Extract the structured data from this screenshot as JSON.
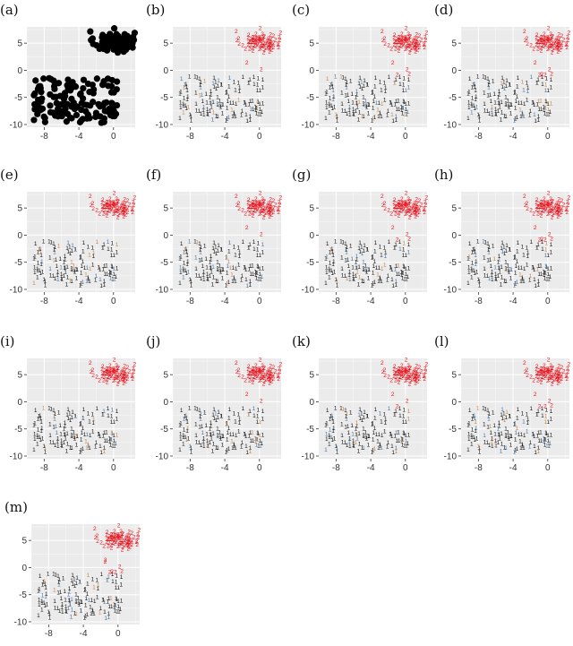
{
  "chart_data": [
    {
      "id": "a",
      "label": "(a)",
      "type": "scatter",
      "style": "dots",
      "xlim": [
        -10,
        2.5
      ],
      "ylim": [
        -10.5,
        8
      ],
      "xticks": [
        "-8",
        "-4",
        "0"
      ],
      "yticks": [
        "5",
        "0",
        "-5",
        "-10"
      ],
      "series": [
        {
          "name": "",
          "points": "black dots: dense cluster around x≈0, y≈5; sparse cluster spanning x −9 to 0, y −10 to −2"
        }
      ]
    },
    {
      "id": "b",
      "label": "(b)",
      "type": "scatter",
      "style": "glyphs",
      "xlim": [
        -10,
        2.5
      ],
      "ylim": [
        -10.5,
        8
      ],
      "xticks": [
        "-8",
        "-4",
        "0"
      ],
      "yticks": [
        "5",
        "0",
        "-5",
        "-10"
      ],
      "series": [
        {
          "name": "",
          "glyph": "2",
          "color": "#e8141e"
        },
        {
          "name": "",
          "glyph": "1",
          "color": "#1a1a1a"
        }
      ]
    },
    {
      "id": "c",
      "label": "(c)",
      "type": "scatter",
      "style": "glyphs",
      "xlim": [
        -10,
        2.5
      ],
      "ylim": [
        -10.5,
        8
      ],
      "xticks": [
        "-8",
        "-4",
        "0"
      ],
      "yticks": [
        "5",
        "0",
        "-5",
        "-10"
      ],
      "series": [
        {
          "name": "",
          "glyph": "2",
          "color": "#e8141e"
        },
        {
          "name": "",
          "glyph": "1",
          "color": "#1a1a1a"
        }
      ]
    },
    {
      "id": "d",
      "label": "(d)",
      "type": "scatter",
      "style": "glyphs",
      "xlim": [
        -10,
        2.5
      ],
      "ylim": [
        -10.5,
        8
      ],
      "xticks": [
        "-8",
        "-4",
        "0"
      ],
      "yticks": [
        "5",
        "0",
        "-5",
        "-10"
      ],
      "series": [
        {
          "name": "",
          "glyph": "2",
          "color": "#e8141e"
        },
        {
          "name": "",
          "glyph": "1",
          "color": "#1a1a1a"
        }
      ]
    },
    {
      "id": "e",
      "label": "(e)",
      "type": "scatter",
      "style": "glyphs",
      "xlim": [
        -10,
        2.5
      ],
      "ylim": [
        -10.5,
        8
      ],
      "xticks": [
        "-8",
        "-4",
        "0"
      ],
      "yticks": [
        "5",
        "0",
        "-5",
        "-10"
      ],
      "series": [
        {
          "name": "",
          "glyph": "2",
          "color": "#e8141e"
        },
        {
          "name": "",
          "glyph": "1",
          "color": "#1a1a1a"
        }
      ]
    },
    {
      "id": "f",
      "label": "(f)",
      "type": "scatter",
      "style": "glyphs",
      "xlim": [
        -10,
        2.5
      ],
      "ylim": [
        -10.5,
        8
      ],
      "xticks": [
        "-8",
        "-4",
        "0"
      ],
      "yticks": [
        "5",
        "0",
        "-5",
        "-10"
      ],
      "series": [
        {
          "name": "",
          "glyph": "2",
          "color": "#e8141e"
        },
        {
          "name": "",
          "glyph": "1",
          "color": "#1a1a1a"
        }
      ]
    },
    {
      "id": "g",
      "label": "(g)",
      "type": "scatter",
      "style": "glyphs",
      "xlim": [
        -10,
        2.5
      ],
      "ylim": [
        -10.5,
        8
      ],
      "xticks": [
        "-8",
        "-4",
        "0"
      ],
      "yticks": [
        "5",
        "0",
        "-5",
        "-10"
      ],
      "series": [
        {
          "name": "",
          "glyph": "2",
          "color": "#e8141e"
        },
        {
          "name": "",
          "glyph": "1",
          "color": "#1a1a1a"
        }
      ]
    },
    {
      "id": "h",
      "label": "(h)",
      "type": "scatter",
      "style": "glyphs",
      "xlim": [
        -10,
        2.5
      ],
      "ylim": [
        -10.5,
        8
      ],
      "xticks": [
        "-8",
        "-4",
        "0"
      ],
      "yticks": [
        "5",
        "0",
        "-5",
        "-10"
      ],
      "series": [
        {
          "name": "",
          "glyph": "2",
          "color": "#e8141e"
        },
        {
          "name": "",
          "glyph": "1",
          "color": "#1a1a1a"
        }
      ]
    },
    {
      "id": "i",
      "label": "(i)",
      "type": "scatter",
      "style": "glyphs",
      "xlim": [
        -10,
        2.5
      ],
      "ylim": [
        -10.5,
        8
      ],
      "xticks": [
        "-8",
        "-4",
        "0"
      ],
      "yticks": [
        "5",
        "0",
        "-5",
        "-10"
      ],
      "series": [
        {
          "name": "",
          "glyph": "2",
          "color": "#e8141e"
        },
        {
          "name": "",
          "glyph": "1",
          "color": "#1a1a1a"
        }
      ]
    },
    {
      "id": "j",
      "label": "(j)",
      "type": "scatter",
      "style": "glyphs",
      "xlim": [
        -10,
        2.5
      ],
      "ylim": [
        -10.5,
        8
      ],
      "xticks": [
        "-8",
        "-4",
        "0"
      ],
      "yticks": [
        "5",
        "0",
        "-5",
        "-10"
      ],
      "series": [
        {
          "name": "",
          "glyph": "2",
          "color": "#e8141e"
        },
        {
          "name": "",
          "glyph": "1",
          "color": "#1a1a1a"
        }
      ]
    },
    {
      "id": "k",
      "label": "(k)",
      "type": "scatter",
      "style": "glyphs",
      "xlim": [
        -10,
        2.5
      ],
      "ylim": [
        -10.5,
        8
      ],
      "xticks": [
        "-8",
        "-4",
        "0"
      ],
      "yticks": [
        "5",
        "0",
        "-5",
        "-10"
      ],
      "series": [
        {
          "name": "",
          "glyph": "2",
          "color": "#e8141e"
        },
        {
          "name": "",
          "glyph": "1",
          "color": "#1a1a1a"
        }
      ]
    },
    {
      "id": "l",
      "label": "(l)",
      "type": "scatter",
      "style": "glyphs",
      "xlim": [
        -10,
        2.5
      ],
      "ylim": [
        -10.5,
        8
      ],
      "xticks": [
        "-8",
        "-4",
        "0"
      ],
      "yticks": [
        "5",
        "0",
        "-5",
        "-10"
      ],
      "series": [
        {
          "name": "",
          "glyph": "2",
          "color": "#e8141e"
        },
        {
          "name": "",
          "glyph": "1",
          "color": "#1a1a1a"
        }
      ]
    },
    {
      "id": "m",
      "label": "(m)",
      "type": "scatter",
      "style": "glyphs",
      "xlim": [
        -10,
        2.5
      ],
      "ylim": [
        -10.5,
        8
      ],
      "xticks": [
        "-8",
        "-4",
        "0"
      ],
      "yticks": [
        "5",
        "0",
        "-5",
        "-10"
      ],
      "series": [
        {
          "name": "",
          "glyph": "2",
          "color": "#e8141e"
        },
        {
          "name": "",
          "glyph": "1",
          "color": "#1a1a1a"
        }
      ]
    }
  ],
  "colors": {
    "panel_bg": "#ebebeb",
    "grid": "#ffffff",
    "class_2": "#e8141e",
    "class_1": "#1a1a1a",
    "class_1_alt_a": "#4a78a8",
    "class_1_alt_b": "#c88a4a"
  }
}
